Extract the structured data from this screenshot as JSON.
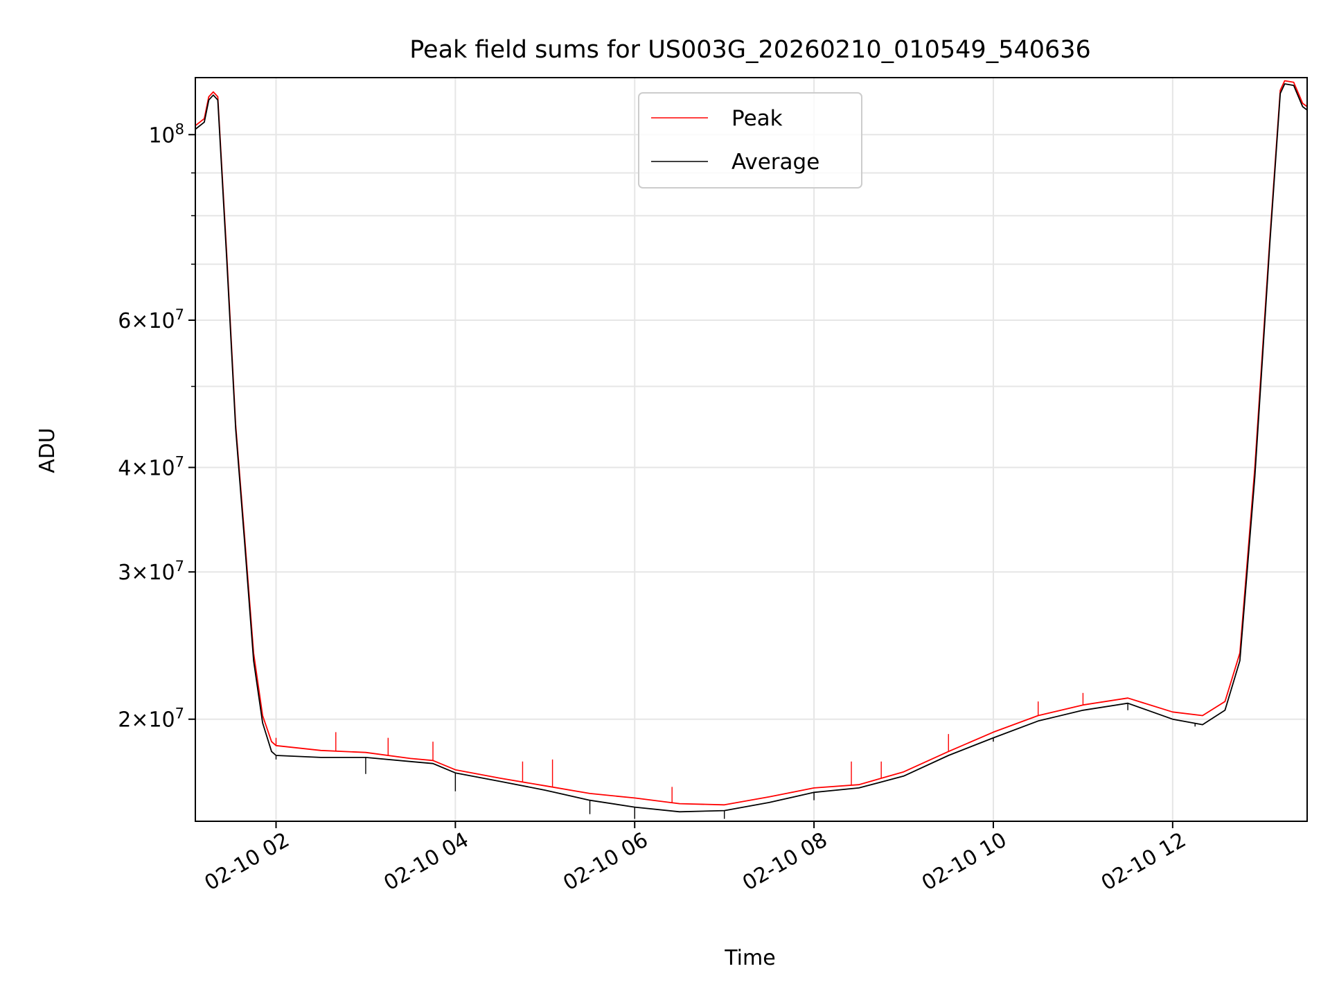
{
  "chart_data": {
    "type": "line",
    "title": "Peak field sums for US003G_20260210_010549_540636",
    "xlabel": "Time",
    "ylabel": "ADU",
    "x_scale": "time",
    "y_scale": "log",
    "xlim": [
      "2026-02-10 01:06",
      "2026-02-10 13:30"
    ],
    "ylim": [
      15100000,
      117000000
    ],
    "grid": true,
    "legend_position": "top-center",
    "x_ticks": [
      {
        "t": "2026-02-10 02:00",
        "label": "02-10 02"
      },
      {
        "t": "2026-02-10 04:00",
        "label": "02-10 04"
      },
      {
        "t": "2026-02-10 06:00",
        "label": "02-10 06"
      },
      {
        "t": "2026-02-10 08:00",
        "label": "02-10 08"
      },
      {
        "t": "2026-02-10 10:00",
        "label": "02-10 10"
      },
      {
        "t": "2026-02-10 12:00",
        "label": "02-10 12"
      }
    ],
    "y_ticks": [
      {
        "value": 20000000,
        "base": "2",
        "exp": "7"
      },
      {
        "value": 30000000,
        "base": "3",
        "exp": "7"
      },
      {
        "value": 40000000,
        "base": "4",
        "exp": "7"
      },
      {
        "value": 60000000,
        "base": "6",
        "exp": "7"
      },
      {
        "value": 100000000,
        "base": "",
        "exp": "8"
      }
    ],
    "y_minor_ticks": [
      50000000,
      70000000,
      80000000,
      90000000
    ],
    "series": [
      {
        "name": "Peak",
        "color": "#ff0000",
        "points": [
          [
            "2026-02-10 01:06",
            102500000
          ],
          [
            "2026-02-10 01:12",
            104500000
          ],
          [
            "2026-02-10 01:15",
            111000000
          ],
          [
            "2026-02-10 01:18",
            112500000
          ],
          [
            "2026-02-10 01:21",
            111000000
          ],
          [
            "2026-02-10 01:27",
            72000000
          ],
          [
            "2026-02-10 01:33",
            45000000
          ],
          [
            "2026-02-10 01:39",
            33000000
          ],
          [
            "2026-02-10 01:45",
            24000000
          ],
          [
            "2026-02-10 01:51",
            20200000
          ],
          [
            "2026-02-10 01:57",
            18800000
          ],
          [
            "2026-02-10 02:00",
            18600000
          ],
          [
            "2026-02-10 02:30",
            18350000
          ],
          [
            "2026-02-10 03:00",
            18250000
          ],
          [
            "2026-02-10 03:30",
            17950000
          ],
          [
            "2026-02-10 03:45",
            17850000
          ],
          [
            "2026-02-10 04:00",
            17400000
          ],
          [
            "2026-02-10 04:30",
            17000000
          ],
          [
            "2026-02-10 05:00",
            16650000
          ],
          [
            "2026-02-10 05:30",
            16300000
          ],
          [
            "2026-02-10 06:00",
            16100000
          ],
          [
            "2026-02-10 06:30",
            15850000
          ],
          [
            "2026-02-10 07:00",
            15800000
          ],
          [
            "2026-02-10 07:30",
            16150000
          ],
          [
            "2026-02-10 08:00",
            16550000
          ],
          [
            "2026-02-10 08:30",
            16700000
          ],
          [
            "2026-02-10 09:00",
            17300000
          ],
          [
            "2026-02-10 09:30",
            18300000
          ],
          [
            "2026-02-10 10:00",
            19300000
          ],
          [
            "2026-02-10 10:30",
            20200000
          ],
          [
            "2026-02-10 11:00",
            20800000
          ],
          [
            "2026-02-10 11:30",
            21200000
          ],
          [
            "2026-02-10 12:00",
            20400000
          ],
          [
            "2026-02-10 12:20",
            20200000
          ],
          [
            "2026-02-10 12:35",
            21000000
          ],
          [
            "2026-02-10 12:45",
            24000000
          ],
          [
            "2026-02-10 12:55",
            40000000
          ],
          [
            "2026-02-10 13:05",
            75000000
          ],
          [
            "2026-02-10 13:12",
            113000000
          ],
          [
            "2026-02-10 13:15",
            116000000
          ],
          [
            "2026-02-10 13:21",
            115500000
          ],
          [
            "2026-02-10 13:27",
            109000000
          ],
          [
            "2026-02-10 13:30",
            108000000
          ]
        ],
        "spikes": [
          [
            "2026-02-10 02:00",
            19000000
          ],
          [
            "2026-02-10 02:40",
            19300000
          ],
          [
            "2026-02-10 03:15",
            19000000
          ],
          [
            "2026-02-10 03:45",
            18800000
          ],
          [
            "2026-02-10 04:45",
            17800000
          ],
          [
            "2026-02-10 05:05",
            17900000
          ],
          [
            "2026-02-10 06:25",
            16600000
          ],
          [
            "2026-02-10 08:25",
            17800000
          ],
          [
            "2026-02-10 08:45",
            17800000
          ],
          [
            "2026-02-10 09:30",
            19200000
          ],
          [
            "2026-02-10 10:30",
            21000000
          ],
          [
            "2026-02-10 11:00",
            21500000
          ]
        ]
      },
      {
        "name": "Average",
        "color": "#000000",
        "points": [
          [
            "2026-02-10 01:06",
            101500000
          ],
          [
            "2026-02-10 01:12",
            103500000
          ],
          [
            "2026-02-10 01:15",
            110000000
          ],
          [
            "2026-02-10 01:18",
            111500000
          ],
          [
            "2026-02-10 01:21",
            110000000
          ],
          [
            "2026-02-10 01:27",
            71000000
          ],
          [
            "2026-02-10 01:33",
            44500000
          ],
          [
            "2026-02-10 01:39",
            32500000
          ],
          [
            "2026-02-10 01:45",
            23500000
          ],
          [
            "2026-02-10 01:51",
            19800000
          ],
          [
            "2026-02-10 01:57",
            18300000
          ],
          [
            "2026-02-10 02:00",
            18100000
          ],
          [
            "2026-02-10 02:30",
            18000000
          ],
          [
            "2026-02-10 03:00",
            18000000
          ],
          [
            "2026-02-10 03:30",
            17800000
          ],
          [
            "2026-02-10 03:45",
            17700000
          ],
          [
            "2026-02-10 04:00",
            17250000
          ],
          [
            "2026-02-10 04:30",
            16850000
          ],
          [
            "2026-02-10 05:00",
            16450000
          ],
          [
            "2026-02-10 05:30",
            16000000
          ],
          [
            "2026-02-10 06:00",
            15700000
          ],
          [
            "2026-02-10 06:30",
            15500000
          ],
          [
            "2026-02-10 07:00",
            15550000
          ],
          [
            "2026-02-10 07:30",
            15900000
          ],
          [
            "2026-02-10 08:00",
            16350000
          ],
          [
            "2026-02-10 08:30",
            16550000
          ],
          [
            "2026-02-10 09:00",
            17100000
          ],
          [
            "2026-02-10 09:30",
            18100000
          ],
          [
            "2026-02-10 10:00",
            19000000
          ],
          [
            "2026-02-10 10:30",
            19900000
          ],
          [
            "2026-02-10 11:00",
            20500000
          ],
          [
            "2026-02-10 11:30",
            20900000
          ],
          [
            "2026-02-10 12:00",
            20000000
          ],
          [
            "2026-02-10 12:20",
            19700000
          ],
          [
            "2026-02-10 12:35",
            20500000
          ],
          [
            "2026-02-10 12:45",
            23500000
          ],
          [
            "2026-02-10 12:55",
            39000000
          ],
          [
            "2026-02-10 13:05",
            74000000
          ],
          [
            "2026-02-10 13:12",
            112000000
          ],
          [
            "2026-02-10 13:15",
            115000000
          ],
          [
            "2026-02-10 13:21",
            114500000
          ],
          [
            "2026-02-10 13:27",
            108000000
          ],
          [
            "2026-02-10 13:30",
            107000000
          ]
        ],
        "dips": [
          [
            "2026-02-10 02:00",
            17900000
          ],
          [
            "2026-02-10 03:00",
            17200000
          ],
          [
            "2026-02-10 04:00",
            16400000
          ],
          [
            "2026-02-10 05:30",
            15400000
          ],
          [
            "2026-02-10 06:00",
            15200000
          ],
          [
            "2026-02-10 07:00",
            15200000
          ],
          [
            "2026-02-10 08:00",
            16000000
          ],
          [
            "2026-02-10 10:00",
            18800000
          ],
          [
            "2026-02-10 11:30",
            20500000
          ],
          [
            "2026-02-10 12:15",
            19600000
          ]
        ]
      }
    ]
  }
}
